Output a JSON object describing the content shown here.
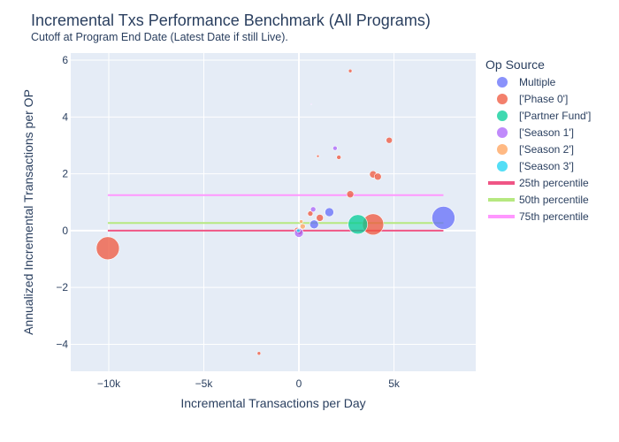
{
  "chart_data": {
    "type": "scatter",
    "title": "Incremental Txs Performance Benchmark (All Programs)",
    "subtitle": "Cutoff at Program End Date (Latest Date if still Live).",
    "xlabel": "Incremental Transactions per Day",
    "ylabel": "Annualized Incremental Transactions per OP",
    "xlim": [
      -12000,
      9300
    ],
    "ylim": [
      -4.95,
      6.25
    ],
    "x_ticks": [
      {
        "value": -10000,
        "label": "−10k"
      },
      {
        "value": -5000,
        "label": "−5k"
      },
      {
        "value": 0,
        "label": "0"
      },
      {
        "value": 5000,
        "label": "5k"
      }
    ],
    "y_ticks": [
      {
        "value": -4,
        "label": "−4"
      },
      {
        "value": -2,
        "label": "−2"
      },
      {
        "value": 0,
        "label": "0"
      },
      {
        "value": 2,
        "label": "2"
      },
      {
        "value": 4,
        "label": "4"
      },
      {
        "value": 6,
        "label": "6"
      }
    ],
    "grid": true,
    "legend_title": "Op Source",
    "legend_position": "right",
    "series": [
      {
        "name": "Multiple",
        "color": "#636efa",
        "opacity": 0.75,
        "points": [
          [
            7600,
            0.45,
            13
          ],
          [
            1600,
            0.65,
            5
          ],
          [
            800,
            0.22,
            5
          ],
          [
            0,
            -0.02,
            4
          ]
        ]
      },
      {
        "name": "['Phase 0']",
        "color": "#ef553b",
        "opacity": 0.75,
        "points": [
          [
            -10050,
            -0.62,
            13
          ],
          [
            3900,
            0.22,
            12
          ],
          [
            2700,
            1.28,
            4
          ],
          [
            3900,
            1.98,
            4
          ],
          [
            4150,
            1.9,
            4
          ],
          [
            4750,
            3.18,
            3.5
          ],
          [
            1100,
            0.45,
            4
          ],
          [
            600,
            0.6,
            3
          ],
          [
            2100,
            2.58,
            2.5
          ],
          [
            1000,
            2.62,
            1.5
          ],
          [
            2700,
            5.62,
            2
          ],
          [
            -2100,
            -4.32,
            2
          ],
          [
            50,
            -0.05,
            3
          ],
          [
            -100,
            0.02,
            3
          ]
        ]
      },
      {
        "name": "['Partner Fund']",
        "color": "#00cc96",
        "opacity": 0.75,
        "points": [
          [
            3100,
            0.22,
            11
          ]
        ]
      },
      {
        "name": "['Season 1']",
        "color": "#ab63fa",
        "opacity": 0.75,
        "points": [
          [
            0,
            -0.08,
            5
          ],
          [
            750,
            0.75,
            3
          ],
          [
            1900,
            2.9,
            2.5
          ],
          [
            650,
            4.45,
            0.7
          ]
        ]
      },
      {
        "name": "['Season 2']",
        "color": "#ffa15a",
        "opacity": 0.75,
        "points": [
          [
            200,
            0.15,
            3
          ],
          [
            120,
            0.32,
            2
          ]
        ]
      },
      {
        "name": "['Season 3']",
        "color": "#19d3f3",
        "opacity": 0.75,
        "points": [
          [
            -30,
            0.0,
            2
          ]
        ]
      }
    ],
    "percentile_lines": [
      {
        "name": "25th percentile",
        "color": "#ef5585",
        "x": [
          -10050,
          7600
        ],
        "y": 0.0
      },
      {
        "name": "50th percentile",
        "color": "#b6e880",
        "x": [
          -10050,
          7600
        ],
        "y": 0.27
      },
      {
        "name": "75th percentile",
        "color": "#ff97ff",
        "x": [
          -10050,
          7600
        ],
        "y": 1.25
      }
    ]
  }
}
